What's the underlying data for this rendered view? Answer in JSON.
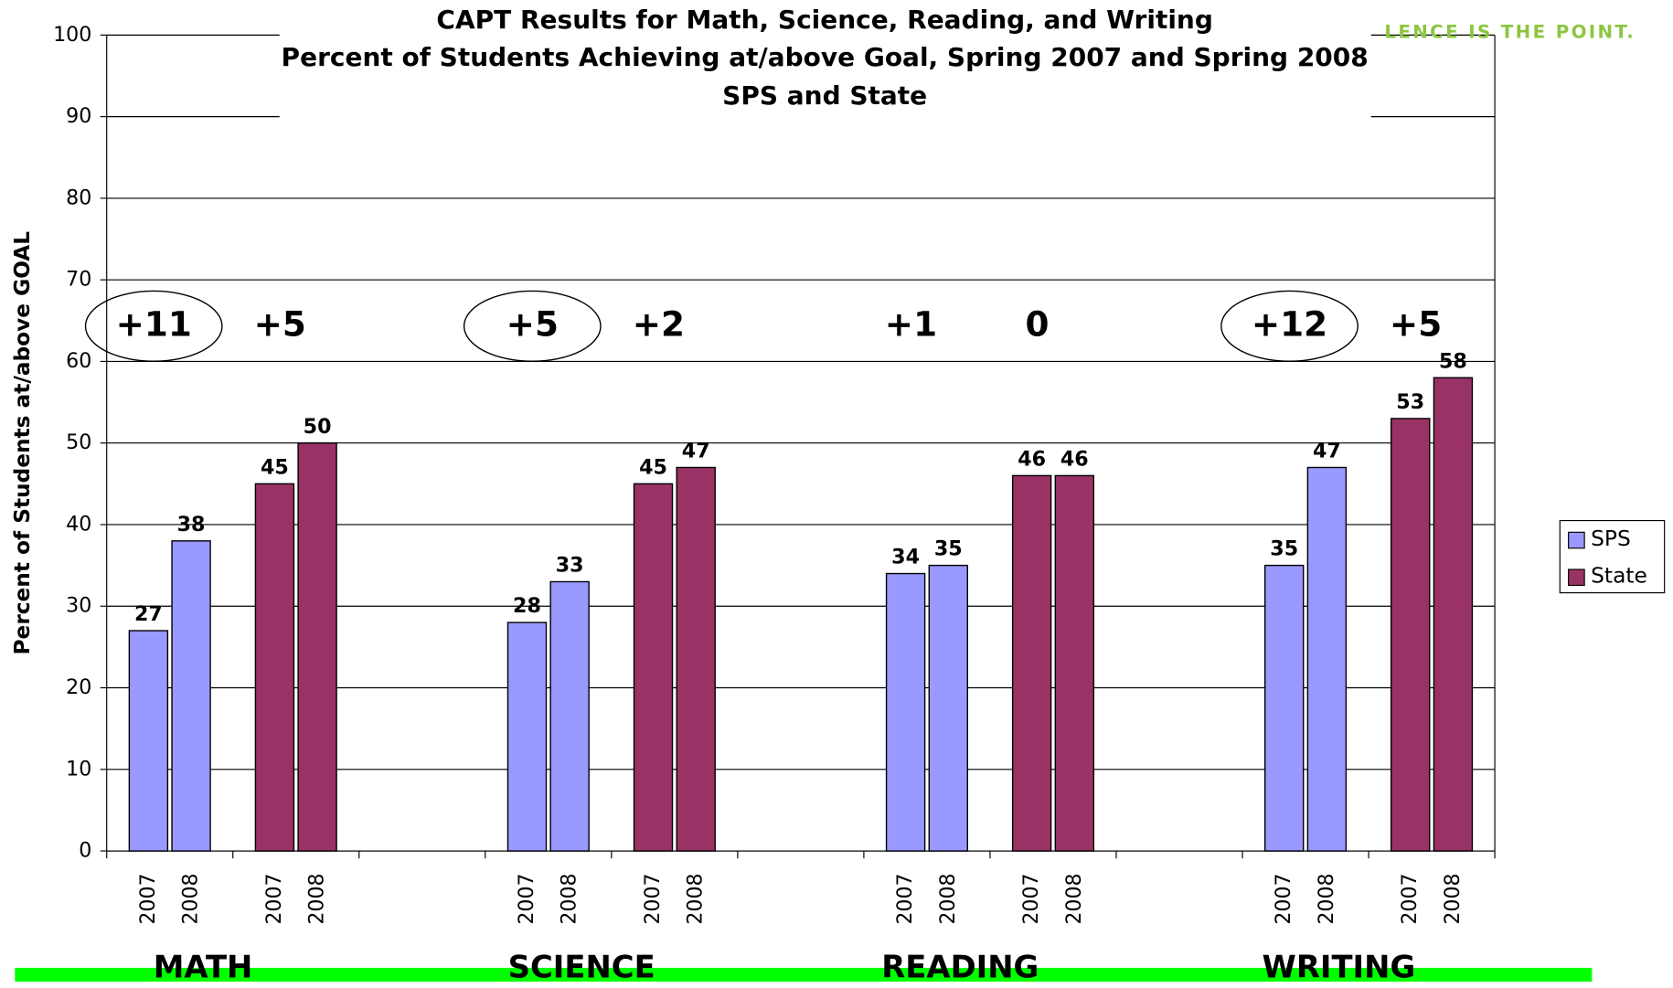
{
  "chart_data": {
    "type": "bar",
    "title": [
      "CAPT Results for Math, Science, Reading, and Writing",
      "Percent of Students Achieving at/above Goal, Spring 2007 and Spring 2008",
      "SPS and State"
    ],
    "watermark": "LENCE IS THE POINT.",
    "ylabel": "Percent of Students at/above GOAL",
    "categories": [
      "MATH",
      "SCIENCE",
      "READING",
      "WRITING"
    ],
    "years": [
      "2007",
      "2008"
    ],
    "series": [
      {
        "name": "SPS",
        "color": "#9999ff",
        "values": [
          [
            27,
            38
          ],
          [
            28,
            33
          ],
          [
            34,
            35
          ],
          [
            35,
            47
          ]
        ]
      },
      {
        "name": "State",
        "color": "#993366",
        "values": [
          [
            45,
            50
          ],
          [
            45,
            47
          ],
          [
            46,
            46
          ],
          [
            53,
            58
          ]
        ]
      }
    ],
    "changes": [
      [
        "+11",
        "+5"
      ],
      [
        "+5",
        "+2"
      ],
      [
        "+1",
        "0"
      ],
      [
        "+12",
        "+5"
      ]
    ],
    "circled": [
      [
        true,
        false
      ],
      [
        true,
        false
      ],
      [
        false,
        false
      ],
      [
        true,
        false
      ]
    ],
    "ylim": [
      0,
      100
    ],
    "yticks": [
      0,
      10,
      20,
      30,
      40,
      50,
      60,
      70,
      80,
      90,
      100
    ],
    "grid": true,
    "legend": "right"
  }
}
